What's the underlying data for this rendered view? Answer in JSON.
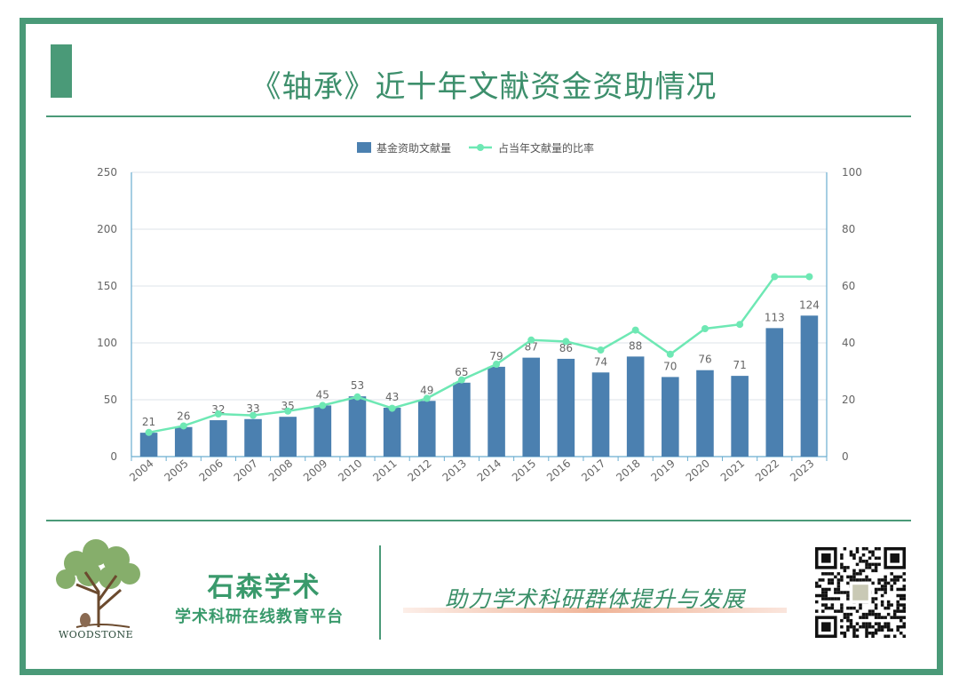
{
  "page": {
    "title": "《轴承》近十年文献资金资助情况"
  },
  "chart_data": {
    "type": "bar+line",
    "legend": [
      "基金资助文献量",
      "占当年文献量的比率"
    ],
    "legend_position": "top-center",
    "categories": [
      "2004",
      "2005",
      "2006",
      "2007",
      "2008",
      "2009",
      "2010",
      "2011",
      "2012",
      "2013",
      "2014",
      "2015",
      "2016",
      "2017",
      "2018",
      "2019",
      "2020",
      "2021",
      "2022",
      "2023"
    ],
    "series": [
      {
        "name": "基金资助文献量",
        "type": "bar",
        "axis": "left",
        "values": [
          21,
          26,
          32,
          33,
          35,
          45,
          53,
          43,
          49,
          65,
          79,
          87,
          86,
          74,
          88,
          70,
          76,
          71,
          113,
          124
        ]
      },
      {
        "name": "占当年文献量的比率",
        "type": "line",
        "axis": "right",
        "values": [
          8.5,
          10.8,
          15,
          14.5,
          16,
          18,
          21,
          17,
          20.5,
          27,
          32.5,
          41,
          40.5,
          37.5,
          44.5,
          36,
          45,
          46.5,
          63.3,
          63.3
        ]
      }
    ],
    "y_left": {
      "min": 0,
      "max": 250,
      "ticks": [
        "0",
        "50",
        "100",
        "150",
        "200",
        "250"
      ]
    },
    "y_right": {
      "min": 0,
      "max": 100,
      "ticks": [
        "0",
        "20",
        "40",
        "60",
        "80",
        "100"
      ]
    },
    "grid": true,
    "colors": {
      "bar": "#4b80b0",
      "line": "#6ee8b4",
      "axis": "#6aaed0",
      "grid": "#dde3ea",
      "label": "#666666"
    }
  },
  "footer": {
    "logo_text": "WOODSTONE",
    "brand_main": "石森学术",
    "brand_sub": "学术科研在线教育平台",
    "slogan": "助力学术科研群体提升与发展"
  },
  "icons": [
    "tree-logo-icon",
    "qr-code-icon"
  ]
}
